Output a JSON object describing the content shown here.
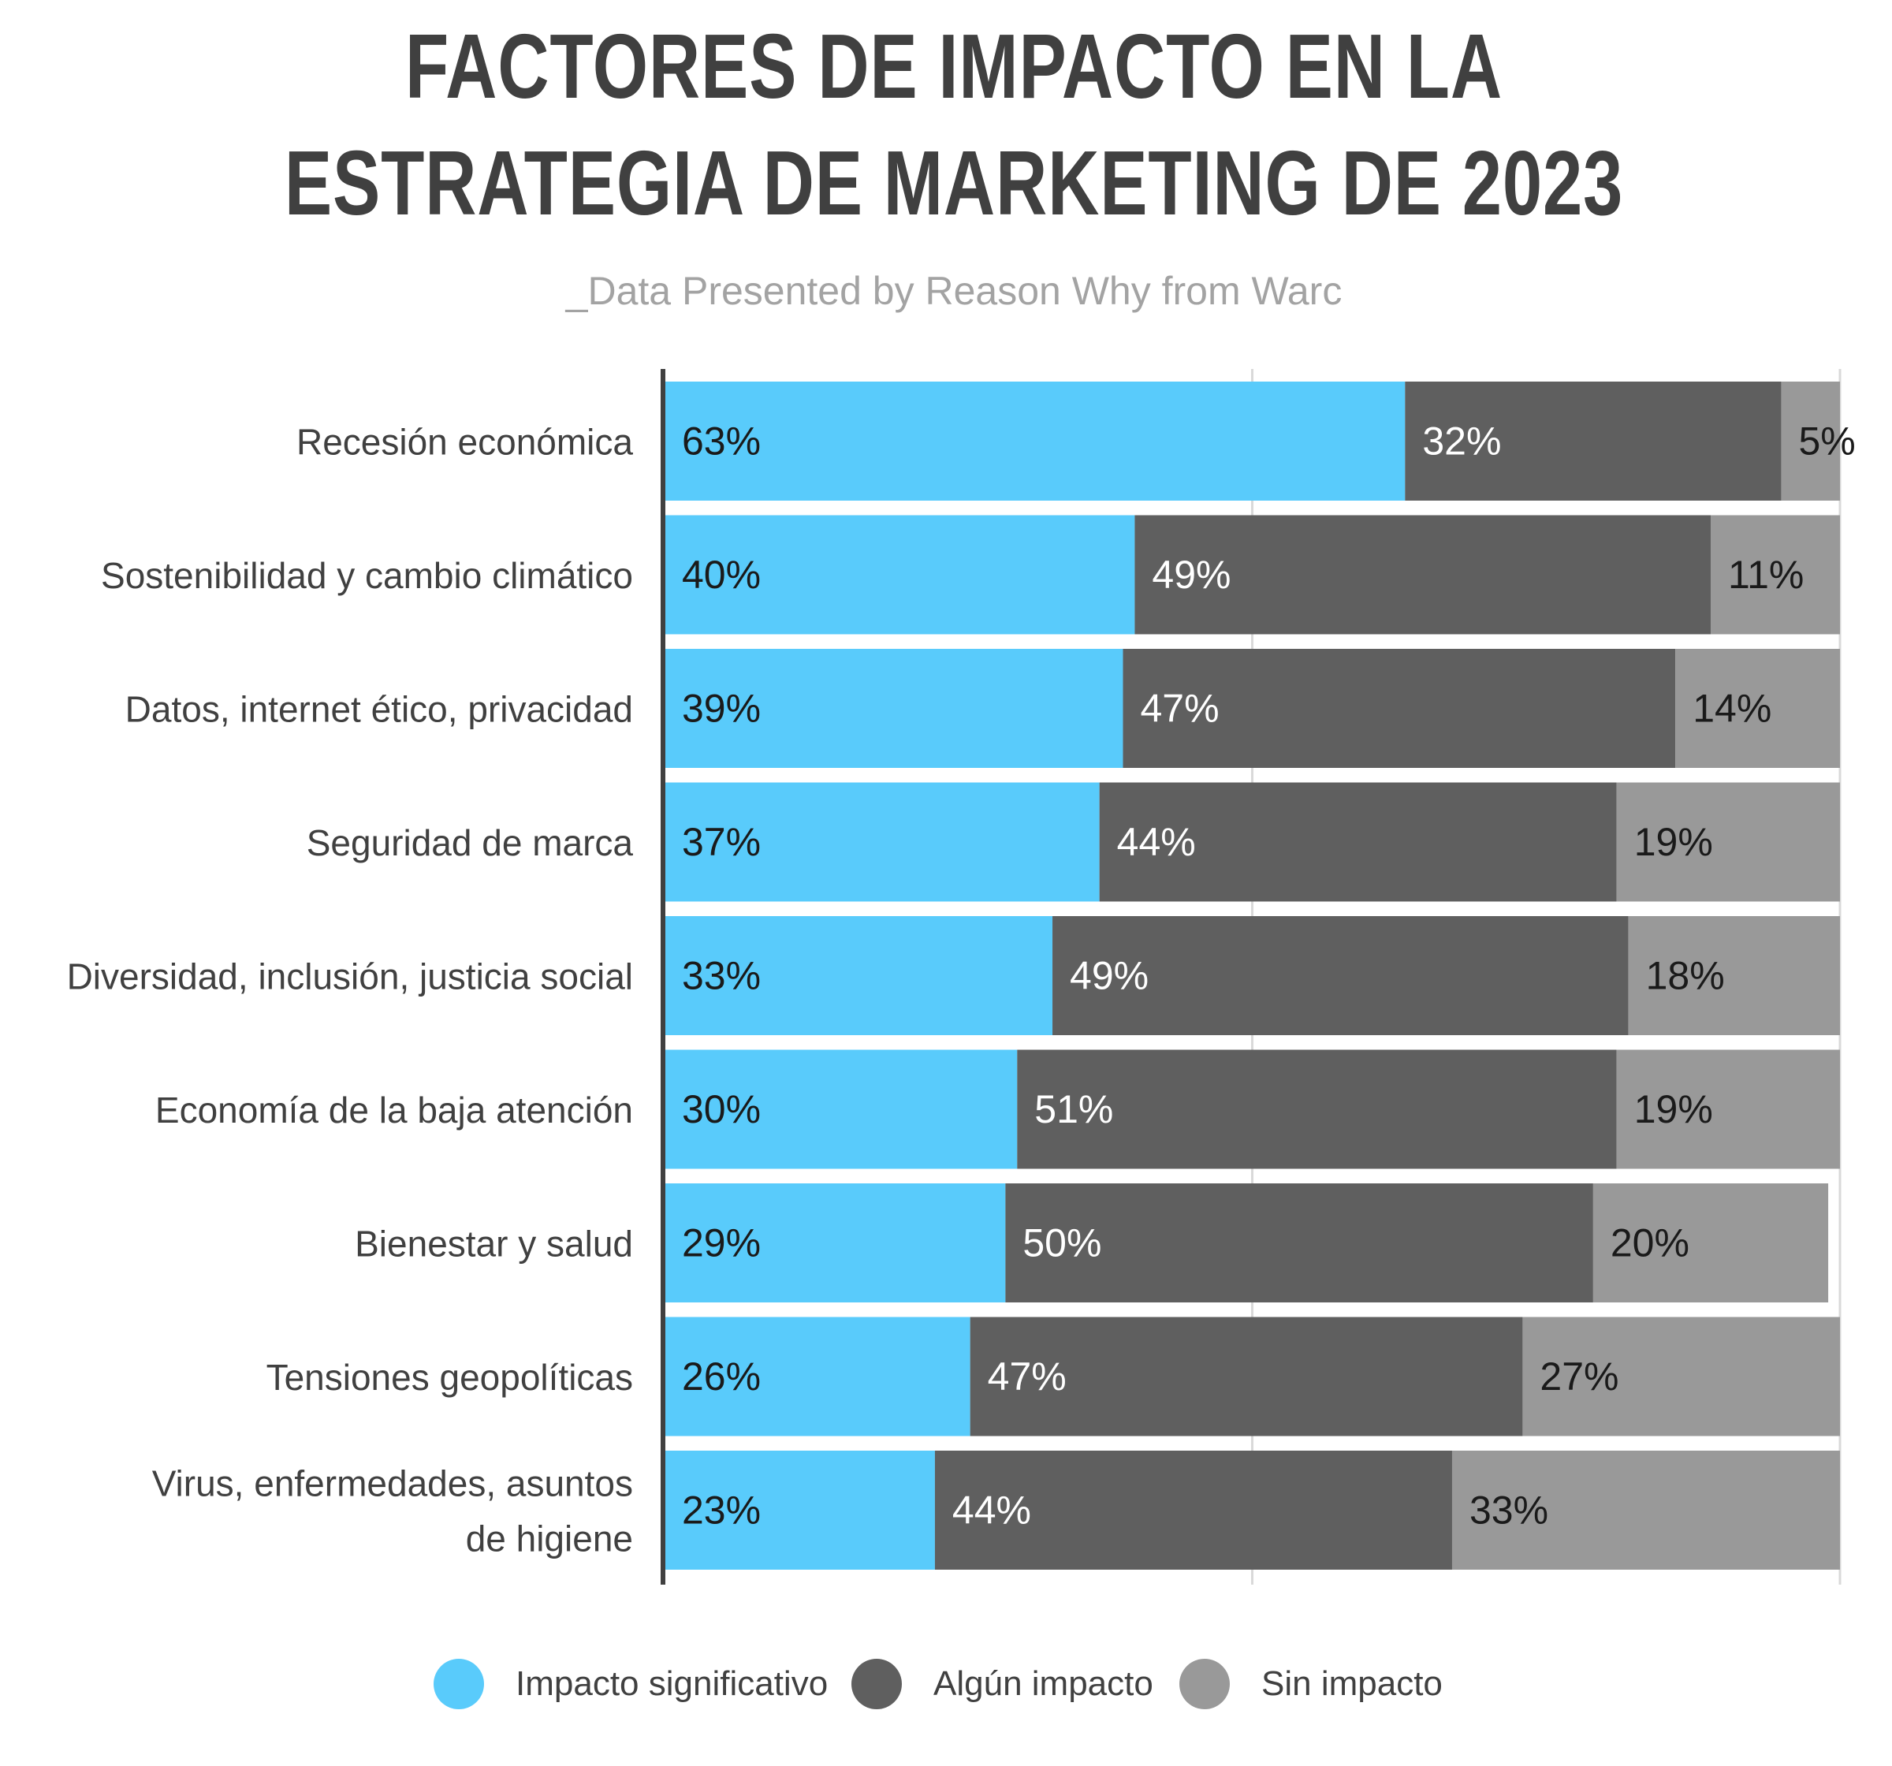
{
  "title": "FACTORES DE IMPACTO EN LA ESTRATEGIA DE MARKETING DE 2023",
  "subtitle": "_Data Presented by Reason Why from Warc",
  "colors": {
    "significativo": "#59cbfb",
    "algun": "#5f5f5f",
    "sin": "#999999",
    "axis": "#404040",
    "grid": "#d9d9d9"
  },
  "legend": {
    "items": [
      {
        "label": "Impacto significativo",
        "color": "#59cbfb"
      },
      {
        "label": "Algún impacto",
        "color": "#5f5f5f"
      },
      {
        "label": "Sin impacto",
        "color": "#999999"
      }
    ]
  },
  "chart_data": {
    "type": "bar",
    "orientation": "horizontal",
    "stacked": true,
    "categories": [
      "Recesión económica",
      "Sostenibilidad y cambio climático",
      "Datos, internet ético, privacidad",
      "Seguridad de marca",
      "Diversidad, inclusión, justicia social",
      "Economía de la baja atención",
      "Bienestar y salud",
      "Tensiones geopolíticas",
      "Virus, enfermedades, asuntos de higiene"
    ],
    "series": [
      {
        "name": "Impacto significativo",
        "values": [
          63,
          40,
          39,
          37,
          33,
          30,
          29,
          26,
          23
        ]
      },
      {
        "name": "Algún impacto",
        "values": [
          32,
          49,
          47,
          44,
          49,
          51,
          50,
          47,
          44
        ]
      },
      {
        "name": "Sin impacto",
        "values": [
          5,
          11,
          14,
          19,
          18,
          19,
          20,
          27,
          33
        ]
      }
    ],
    "data_labels": [
      [
        "63%",
        "32%",
        "5%"
      ],
      [
        "40%",
        "49%",
        "11%"
      ],
      [
        "39%",
        "47%",
        "14%"
      ],
      [
        "37%",
        "44%",
        "19%"
      ],
      [
        "33%",
        "49%",
        "18%"
      ],
      [
        "30%",
        "51%",
        "19%"
      ],
      [
        "29%",
        "50%",
        "20%"
      ],
      [
        "26%",
        "47%",
        "27%"
      ],
      [
        "23%",
        "44%",
        "33%"
      ]
    ],
    "xlim": [
      0,
      100
    ],
    "grid": true,
    "legend_position": "bottom"
  }
}
